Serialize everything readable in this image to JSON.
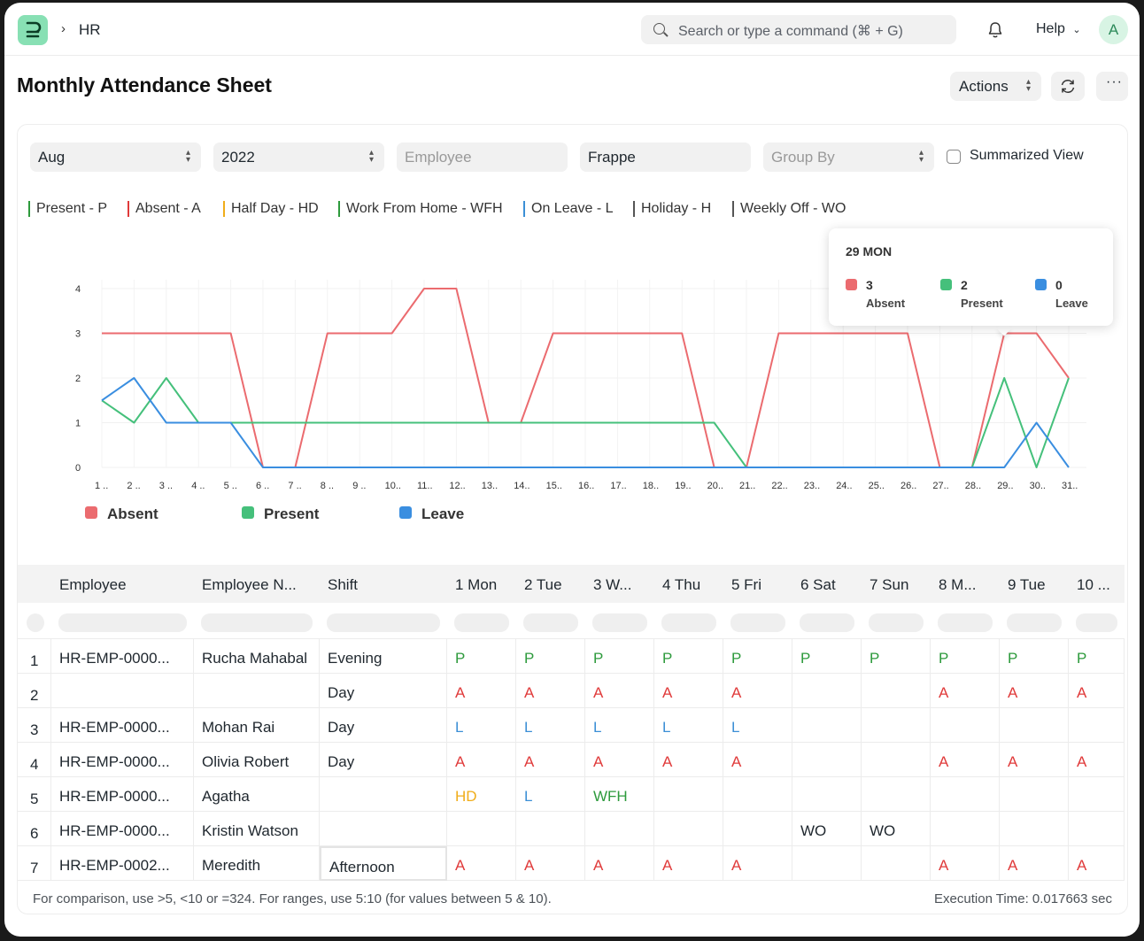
{
  "nav": {
    "breadcrumb": "HR",
    "search_placeholder": "Search or type a command (⌘ + G)",
    "help_label": "Help",
    "avatar_initial": "A"
  },
  "page": {
    "title": "Monthly Attendance Sheet",
    "actions_label": "Actions"
  },
  "filters": {
    "month": "Aug",
    "year": "2022",
    "employee_placeholder": "Employee",
    "company": "Frappe",
    "group_by_placeholder": "Group By",
    "summarized_view_label": "Summarized View"
  },
  "status_legend": [
    {
      "label": "Present - P",
      "color": "#2d9a3c"
    },
    {
      "label": "Absent - A",
      "color": "#e03a3a"
    },
    {
      "label": "Half Day - HD",
      "color": "#f0ad1a"
    },
    {
      "label": "Work From Home - WFH",
      "color": "#2d9a3c"
    },
    {
      "label": "On Leave - L",
      "color": "#3b8fd6"
    },
    {
      "label": "Holiday - H",
      "color": "#555555"
    },
    {
      "label": "Weekly Off - WO",
      "color": "#555555"
    }
  ],
  "chart_data": {
    "type": "line",
    "x": [
      "1 ..",
      "2 ..",
      "3 ..",
      "4 ..",
      "5 ..",
      "6 ..",
      "7 ..",
      "8 ..",
      "9 ..",
      "10..",
      "11..",
      "12..",
      "13..",
      "14..",
      "15..",
      "16..",
      "17..",
      "18..",
      "19..",
      "20..",
      "21..",
      "22..",
      "23..",
      "24..",
      "25..",
      "26..",
      "27..",
      "28..",
      "29..",
      "30..",
      "31.."
    ],
    "y_ticks": [
      "0",
      "1",
      "2",
      "3",
      "4"
    ],
    "ylim": [
      0,
      4
    ],
    "grid": true,
    "legend_position": "bottom-left",
    "series": [
      {
        "name": "Absent",
        "color": "#eb6b6f",
        "values": [
          3,
          3,
          3,
          3,
          3,
          0,
          0,
          3,
          3,
          3,
          4,
          4,
          1,
          1,
          3,
          3,
          3,
          3,
          3,
          0,
          0,
          3,
          3,
          3,
          3,
          3,
          0,
          0,
          3,
          3,
          2
        ]
      },
      {
        "name": "Present",
        "color": "#45c07b",
        "values": [
          1.5,
          1,
          2,
          1,
          1,
          1,
          1,
          1,
          1,
          1,
          1,
          1,
          1,
          1,
          1,
          1,
          1,
          1,
          1,
          1,
          0,
          0,
          0,
          0,
          0,
          0,
          0,
          0,
          2,
          0,
          2
        ]
      },
      {
        "name": "Leave",
        "color": "#3a8ee0",
        "values": [
          1.5,
          2,
          1,
          1,
          1,
          0,
          0,
          0,
          0,
          0,
          0,
          0,
          0,
          0,
          0,
          0,
          0,
          0,
          0,
          0,
          0,
          0,
          0,
          0,
          0,
          0,
          0,
          0,
          0,
          1,
          0
        ]
      }
    ],
    "tooltip": {
      "title": "29 MON",
      "items": [
        {
          "value": "3",
          "label": "Absent",
          "color": "#eb6b6f"
        },
        {
          "value": "2",
          "label": "Present",
          "color": "#45c07b"
        },
        {
          "value": "0",
          "label": "Leave",
          "color": "#3a8ee0"
        }
      ]
    }
  },
  "table": {
    "columns": [
      "Employee",
      "Employee N...",
      "Shift",
      "1 Mon",
      "2 Tue",
      "3 W...",
      "4 Thu",
      "5 Fri",
      "6 Sat",
      "7 Sun",
      "8 M...",
      "9 Tue",
      "10 ..."
    ],
    "rows": [
      {
        "n": "1",
        "employee": "HR-EMP-0000...",
        "name": "Rucha Mahabal",
        "shift": "Evening",
        "days": [
          "P",
          "P",
          "P",
          "P",
          "P",
          "P",
          "P",
          "P",
          "P",
          "P"
        ]
      },
      {
        "n": "2",
        "employee": "",
        "name": "",
        "shift": "Day",
        "days": [
          "A",
          "A",
          "A",
          "A",
          "A",
          "",
          "",
          "A",
          "A",
          "A"
        ]
      },
      {
        "n": "3",
        "employee": "HR-EMP-0000...",
        "name": "Mohan Rai",
        "shift": "Day",
        "days": [
          "L",
          "L",
          "L",
          "L",
          "L",
          "",
          "",
          "",
          "",
          ""
        ]
      },
      {
        "n": "4",
        "employee": "HR-EMP-0000...",
        "name": "Olivia Robert",
        "shift": "Day",
        "days": [
          "A",
          "A",
          "A",
          "A",
          "A",
          "",
          "",
          "A",
          "A",
          "A"
        ]
      },
      {
        "n": "5",
        "employee": "HR-EMP-0000...",
        "name": "Agatha",
        "shift": "",
        "days": [
          "HD",
          "L",
          "WFH",
          "",
          "",
          "",
          "",
          "",
          "",
          ""
        ]
      },
      {
        "n": "6",
        "employee": "HR-EMP-0000...",
        "name": "Kristin Watson",
        "shift": "",
        "days": [
          "",
          "",
          "",
          "",
          "",
          "WO",
          "WO",
          "",
          "",
          ""
        ]
      },
      {
        "n": "7",
        "employee": "HR-EMP-0002...",
        "name": "Meredith",
        "shift": "Afternoon",
        "days": [
          "A",
          "A",
          "A",
          "A",
          "A",
          "",
          "",
          "A",
          "A",
          "A"
        ]
      }
    ],
    "status_colors": {
      "P": "#2d9a3c",
      "A": "#e03a3a",
      "L": "#3b8fd6",
      "HD": "#f0ad1a",
      "WFH": "#2d9a3c",
      "WO": "#1f272e"
    }
  },
  "footer": {
    "hint": "For comparison, use >5, <10 or =324. For ranges, use 5:10 (for values between 5 & 10).",
    "execution_time": "Execution Time: 0.017663 sec"
  }
}
